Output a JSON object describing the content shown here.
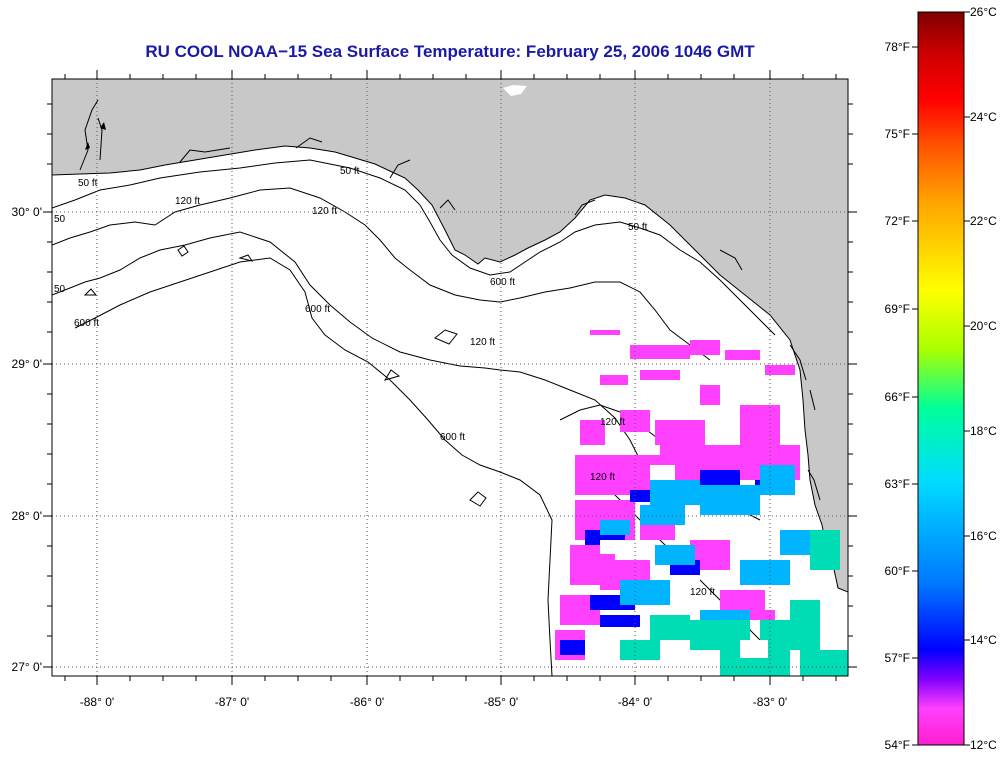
{
  "title": "RU COOL  NOAA−15  Sea Surface Temperature:  February 25, 2006 1046 GMT",
  "map": {
    "lon_ticks": [
      "-88° 0'",
      "-87° 0'",
      "-86° 0'",
      "-85° 0'",
      "-84° 0'",
      "-83° 0'"
    ],
    "lat_ticks": [
      "30° 0'",
      "29° 0'",
      "28° 0'",
      "27° 0'"
    ],
    "contour_labels": [
      "50 ft",
      "120 ft",
      "600 ft",
      "50 ft",
      "120 ft",
      "600 ft",
      "120 ft",
      "600 ft",
      "120 ft",
      "50 ft",
      "120 ft",
      "600 ft",
      "120 ft",
      "50",
      "50"
    ],
    "land_color": "#c8c8c8",
    "water_color": "#ffffff",
    "gridlines": "dotted"
  },
  "colorbar": {
    "fahrenheit_labels": [
      "78°F",
      "75°F",
      "72°F",
      "69°F",
      "66°F",
      "63°F",
      "60°F",
      "57°F",
      "54°F"
    ],
    "celsius_labels": [
      "26°C",
      "24°C",
      "22°C",
      "20°C",
      "18°C",
      "16°C",
      "14°C",
      "12°C"
    ],
    "min_c": 12,
    "max_c": 26,
    "colors": [
      "#ff1ecf",
      "#ff40ff",
      "#8000ff",
      "#0000ff",
      "#0078ff",
      "#00dcff",
      "#00ff9a",
      "#aaff00",
      "#ffff00",
      "#ffa500",
      "#ff5000",
      "#ff0000",
      "#d00000",
      "#800000"
    ]
  }
}
